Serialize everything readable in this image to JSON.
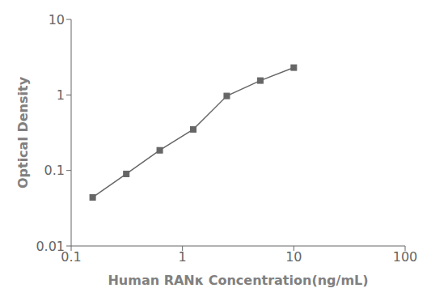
{
  "chart_data": {
    "type": "line",
    "xlabel": "Human RANκ Concentration(ng/mL)",
    "ylabel": "Optical Density",
    "x": [
      0.156,
      0.313,
      0.625,
      1.25,
      2.5,
      5.0,
      10.0
    ],
    "values": [
      0.044,
      0.09,
      0.185,
      0.35,
      0.97,
      1.55,
      2.3
    ],
    "xlim": [
      0.1,
      100
    ],
    "ylim": [
      0.01,
      10
    ],
    "xticks": [
      0.1,
      1,
      10,
      100
    ],
    "yticks": [
      0.01,
      0.1,
      1,
      10
    ],
    "log": true,
    "grid": false,
    "color": "#666666",
    "marker": "square"
  }
}
